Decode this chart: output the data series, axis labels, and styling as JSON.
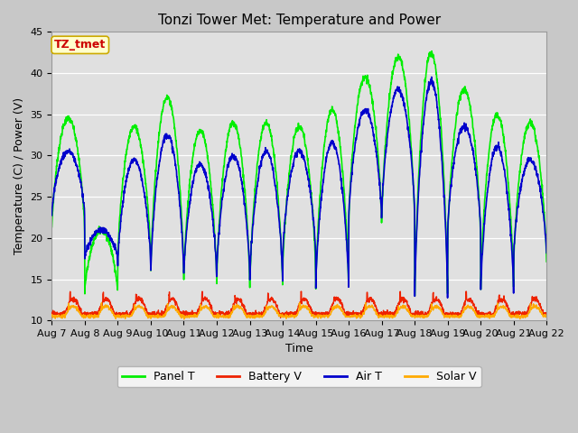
{
  "title": "Tonzi Tower Met: Temperature and Power",
  "xlabel": "Time",
  "ylabel": "Temperature (C) / Power (V)",
  "ylim": [
    10,
    45
  ],
  "yticks": [
    10,
    15,
    20,
    25,
    30,
    35,
    40,
    45
  ],
  "x_tick_labels": [
    "Aug 7",
    "Aug 8",
    "Aug 9",
    "Aug 10",
    "Aug 11",
    "Aug 12",
    "Aug 13",
    "Aug 14",
    "Aug 15",
    "Aug 16",
    "Aug 17",
    "Aug 18",
    "Aug 19",
    "Aug 20",
    "Aug 21",
    "Aug 22"
  ],
  "fig_bg_color": "#c8c8c8",
  "plot_bg_color": "#e0e0e0",
  "legend_label": "TZ_tmet",
  "legend_box_facecolor": "#ffffcc",
  "legend_text_color": "#cc0000",
  "legend_box_edgecolor": "#ccaa00",
  "colors": {
    "panel_t": "#00ee00",
    "battery_v": "#ee2200",
    "air_t": "#0000cc",
    "solar_v": "#ffaa00"
  },
  "linewidths": {
    "panel_t": 1.2,
    "battery_v": 1.0,
    "air_t": 1.2,
    "solar_v": 1.0
  },
  "num_days": 15,
  "ppd": 144,
  "figsize": [
    6.4,
    4.8
  ],
  "dpi": 100,
  "title_fontsize": 11,
  "axis_label_fontsize": 9,
  "tick_fontsize": 8,
  "legend_fontsize": 9
}
